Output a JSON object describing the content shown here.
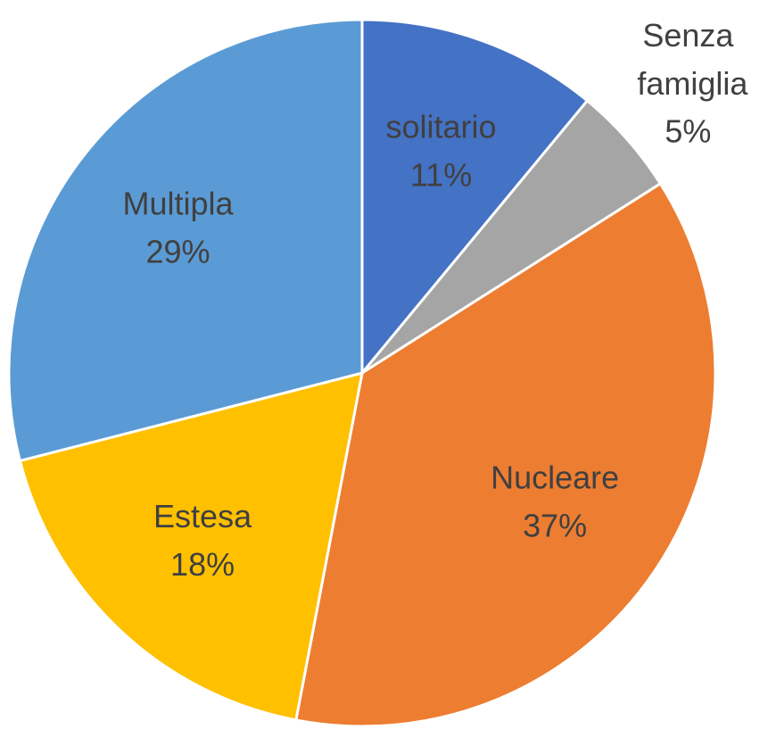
{
  "chart_data": {
    "type": "pie",
    "categories": [
      "solitario",
      "Senza famiglia",
      "Nucleare",
      "Estesa",
      "Multipla"
    ],
    "values": [
      11,
      5,
      37,
      18,
      29
    ],
    "value_labels": [
      "11%",
      "5%",
      "37%",
      "18%",
      "29%"
    ],
    "colors": [
      "#4472c4",
      "#a5a5a5",
      "#ed7d31",
      "#ffc000",
      "#5b9bd5"
    ]
  }
}
